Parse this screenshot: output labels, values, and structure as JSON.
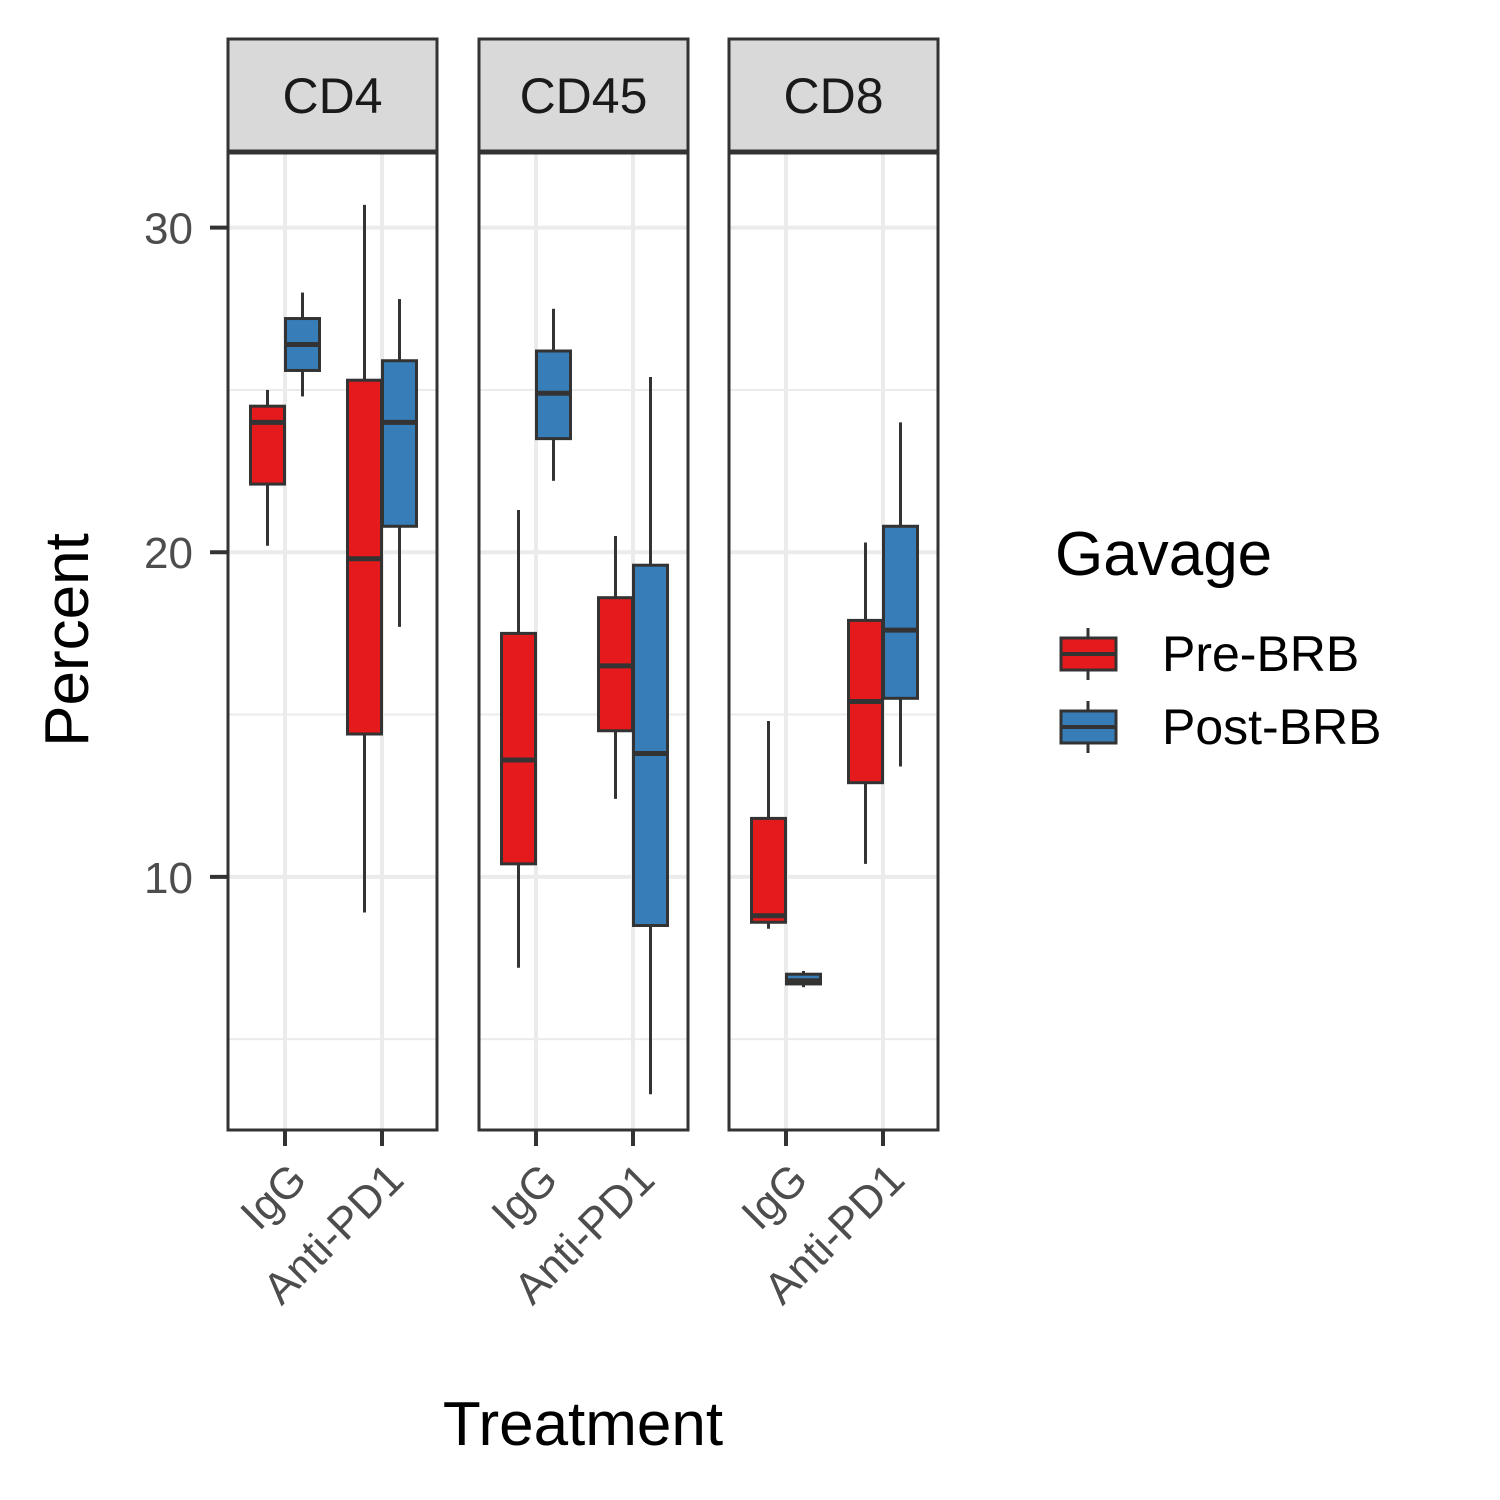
{
  "chart_data": {
    "type": "boxplot",
    "facets": [
      "CD4",
      "CD45",
      "CD8"
    ],
    "categories": [
      "IgG",
      "Anti-PD1"
    ],
    "xlabel": "Treatment",
    "ylabel": "Percent",
    "ylim": [
      2.2,
      32.3
    ],
    "yticks": [
      10,
      20,
      30
    ],
    "grid": true,
    "legend": {
      "title": "Gavage",
      "position": "right",
      "entries": [
        {
          "name": "Pre-BRB",
          "color": "#e41a1c"
        },
        {
          "name": "Post-BRB",
          "color": "#377eb8"
        }
      ]
    },
    "series": [
      {
        "name": "Pre-BRB",
        "color": "#e41a1c",
        "boxes": {
          "CD4": [
            {
              "category": "IgG",
              "min": 20.2,
              "q1": 22.1,
              "median": 24.0,
              "q3": 24.5,
              "max": 25.0
            },
            {
              "category": "Anti-PD1",
              "min": 8.9,
              "q1": 14.4,
              "median": 19.8,
              "q3": 25.3,
              "max": 30.7
            }
          ],
          "CD45": [
            {
              "category": "IgG",
              "min": 7.2,
              "q1": 10.4,
              "median": 13.6,
              "q3": 17.5,
              "max": 21.3
            },
            {
              "category": "Anti-PD1",
              "min": 12.4,
              "q1": 14.5,
              "median": 16.5,
              "q3": 18.6,
              "max": 20.5
            }
          ],
          "CD8": [
            {
              "category": "IgG",
              "min": 8.4,
              "q1": 8.6,
              "median": 8.8,
              "q3": 11.8,
              "max": 14.8
            },
            {
              "category": "Anti-PD1",
              "min": 10.4,
              "q1": 12.9,
              "median": 15.4,
              "q3": 17.9,
              "max": 20.3
            }
          ]
        }
      },
      {
        "name": "Post-BRB",
        "color": "#377eb8",
        "boxes": {
          "CD4": [
            {
              "category": "IgG",
              "min": 24.8,
              "q1": 25.6,
              "median": 26.4,
              "q3": 27.2,
              "max": 28.0
            },
            {
              "category": "Anti-PD1",
              "min": 17.7,
              "q1": 20.8,
              "median": 24.0,
              "q3": 25.9,
              "max": 27.8
            }
          ],
          "CD45": [
            {
              "category": "IgG",
              "min": 22.2,
              "q1": 23.5,
              "median": 24.9,
              "q3": 26.2,
              "max": 27.5
            },
            {
              "category": "Anti-PD1",
              "min": 3.3,
              "q1": 8.5,
              "median": 13.8,
              "q3": 19.6,
              "max": 25.4
            }
          ],
          "CD8": [
            {
              "category": "IgG",
              "min": 6.6,
              "q1": 6.7,
              "median": 6.8,
              "q3": 7.0,
              "max": 7.1
            },
            {
              "category": "Anti-PD1",
              "min": 13.4,
              "q1": 15.5,
              "median": 17.6,
              "q3": 20.8,
              "max": 24.0
            }
          ]
        }
      }
    ]
  }
}
